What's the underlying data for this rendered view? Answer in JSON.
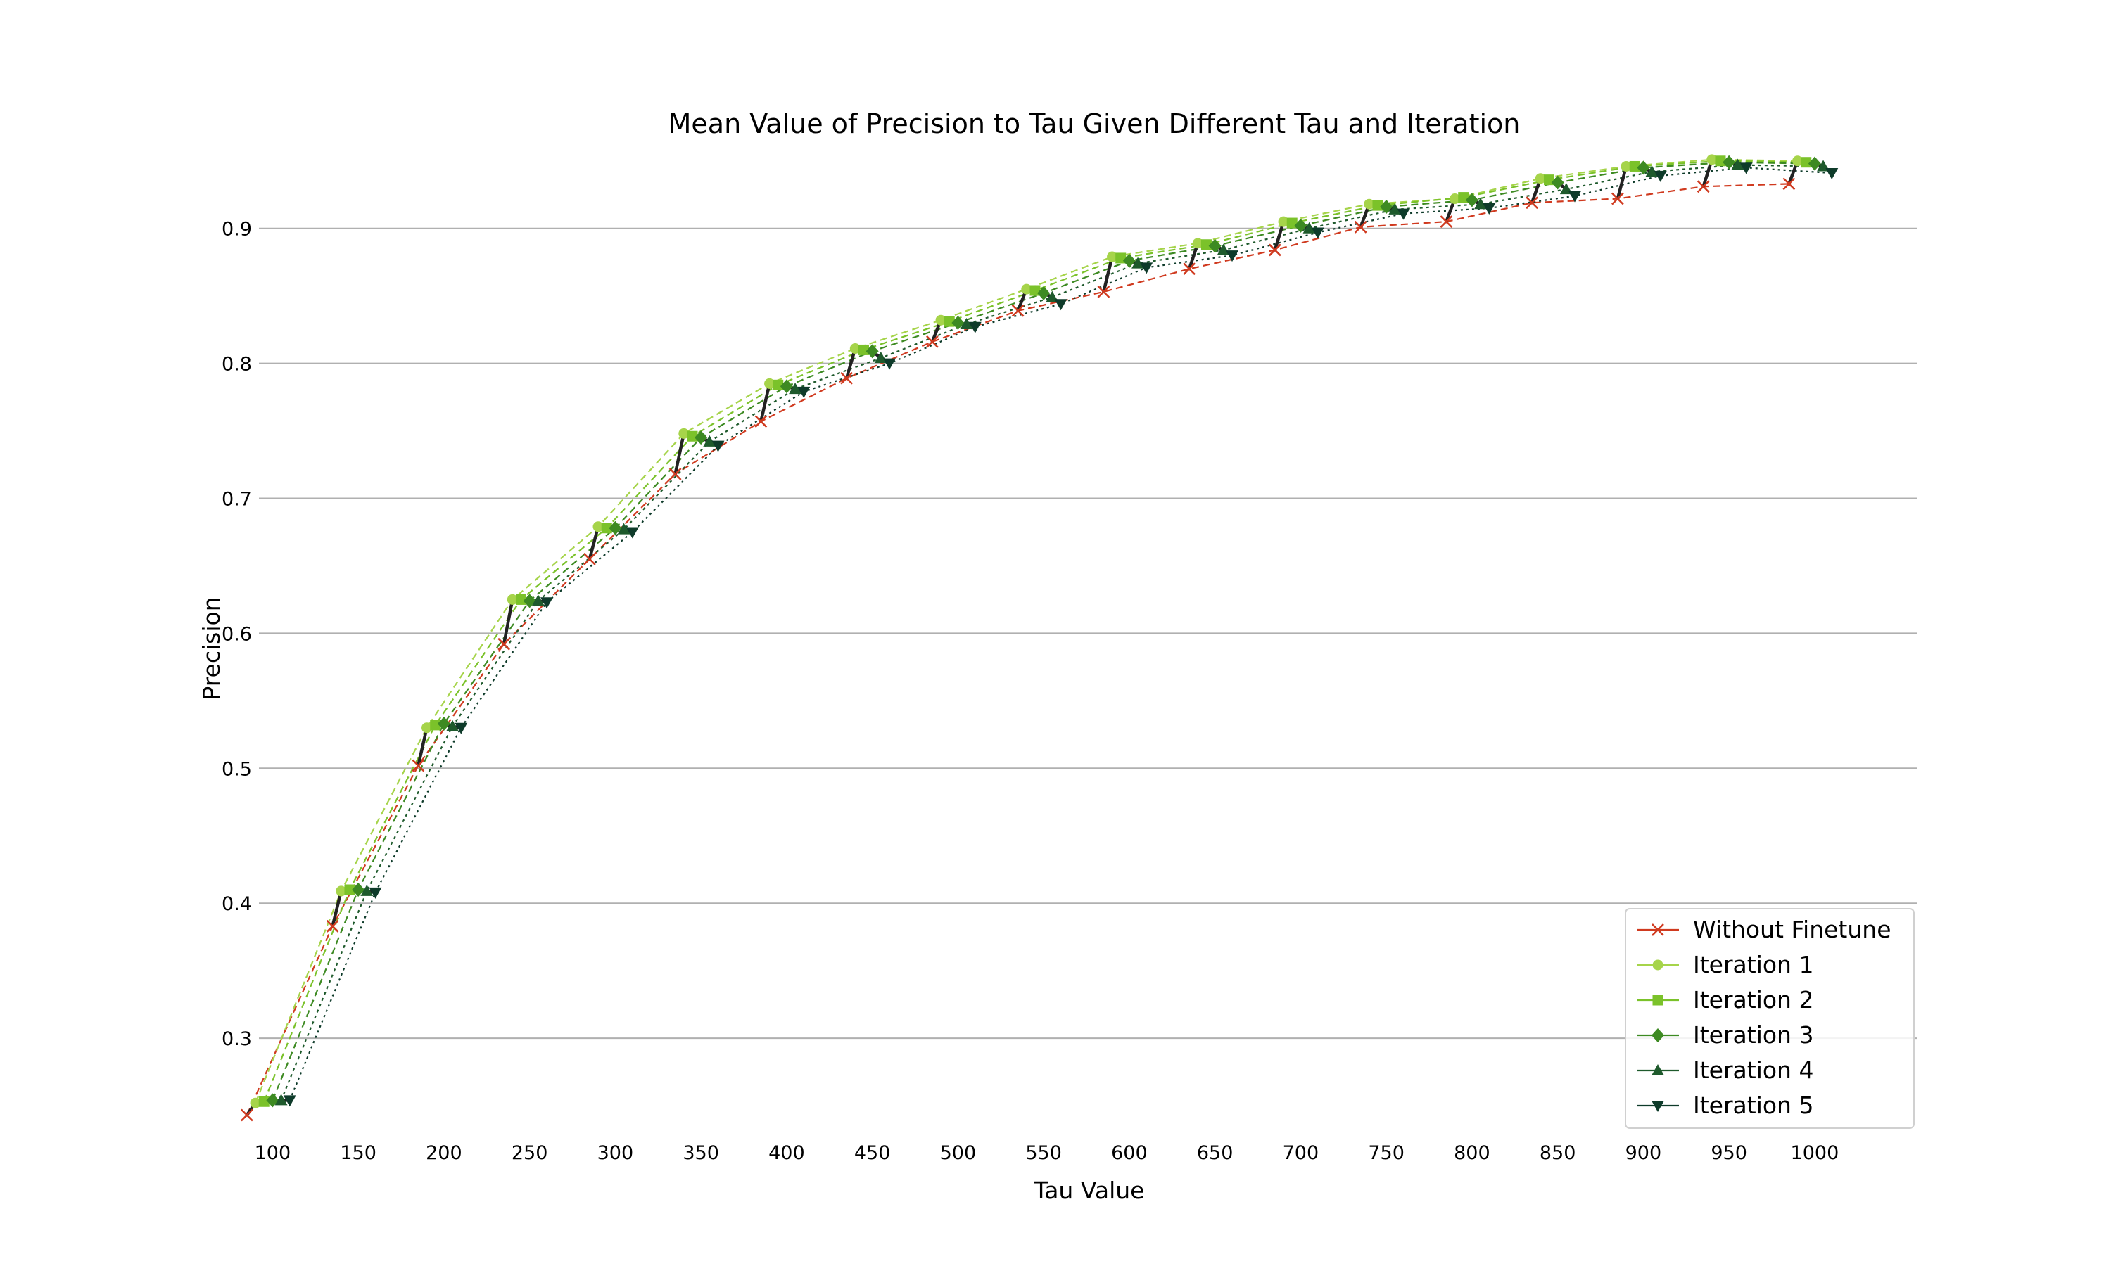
{
  "chart_data": {
    "type": "line",
    "title": "Mean Value of Precision to Tau Given Different Tau and Iteration",
    "xlabel": "Tau Value",
    "ylabel": "Precision",
    "x_ticks": [
      100,
      150,
      200,
      250,
      300,
      350,
      400,
      450,
      500,
      550,
      600,
      650,
      700,
      750,
      800,
      850,
      900,
      950,
      1000
    ],
    "y_ticks": [
      0.3,
      0.4,
      0.5,
      0.6,
      0.7,
      0.8,
      0.9
    ],
    "xlim": [
      60,
      1060
    ],
    "ylim": [
      0.225,
      0.965
    ],
    "grid": "horizontal",
    "legend_position": "lower-right",
    "categories": [
      100,
      150,
      200,
      250,
      300,
      350,
      400,
      450,
      500,
      550,
      600,
      650,
      700,
      750,
      800,
      850,
      900,
      950,
      1000
    ],
    "x_offsets": [
      -15,
      -10,
      -5,
      0,
      5,
      10
    ],
    "series": [
      {
        "name": "Without Finetune",
        "color": "#d03a1f",
        "marker": "x",
        "dash": "10,6",
        "values": [
          0.243,
          0.383,
          0.502,
          0.592,
          0.655,
          0.718,
          0.757,
          0.789,
          0.816,
          0.839,
          0.853,
          0.87,
          0.884,
          0.901,
          0.905,
          0.919,
          0.922,
          0.931,
          0.933
        ]
      },
      {
        "name": "Iteration 1",
        "color": "#a6d44a",
        "marker": "circle",
        "dash": "10,6",
        "values": [
          0.252,
          0.409,
          0.53,
          0.625,
          0.679,
          0.748,
          0.785,
          0.811,
          0.832,
          0.855,
          0.879,
          0.889,
          0.905,
          0.918,
          0.922,
          0.937,
          0.946,
          0.951,
          0.95
        ]
      },
      {
        "name": "Iteration 2",
        "color": "#7bc22a",
        "marker": "square",
        "dash": "10,6",
        "values": [
          0.253,
          0.41,
          0.532,
          0.625,
          0.678,
          0.746,
          0.784,
          0.81,
          0.831,
          0.854,
          0.878,
          0.888,
          0.904,
          0.917,
          0.923,
          0.936,
          0.946,
          0.95,
          0.949
        ]
      },
      {
        "name": "Iteration 3",
        "color": "#3d8a22",
        "marker": "diamond",
        "dash": "10,6",
        "values": [
          0.254,
          0.41,
          0.533,
          0.624,
          0.678,
          0.745,
          0.783,
          0.809,
          0.83,
          0.852,
          0.876,
          0.887,
          0.902,
          0.916,
          0.921,
          0.934,
          0.945,
          0.949,
          0.948
        ]
      },
      {
        "name": "Iteration 4",
        "color": "#1e5a2c",
        "marker": "triangle-up",
        "dash": "4,5",
        "values": [
          0.254,
          0.409,
          0.531,
          0.624,
          0.677,
          0.742,
          0.781,
          0.804,
          0.829,
          0.849,
          0.874,
          0.884,
          0.9,
          0.914,
          0.918,
          0.929,
          0.942,
          0.947,
          0.946
        ]
      },
      {
        "name": "Iteration 5",
        "color": "#0e3b2a",
        "marker": "triangle-down",
        "dash": "3,5",
        "values": [
          0.254,
          0.408,
          0.53,
          0.623,
          0.675,
          0.739,
          0.779,
          0.8,
          0.827,
          0.844,
          0.871,
          0.88,
          0.897,
          0.911,
          0.915,
          0.924,
          0.939,
          0.945,
          0.941
        ]
      }
    ],
    "group_connector_color": "#222222"
  }
}
